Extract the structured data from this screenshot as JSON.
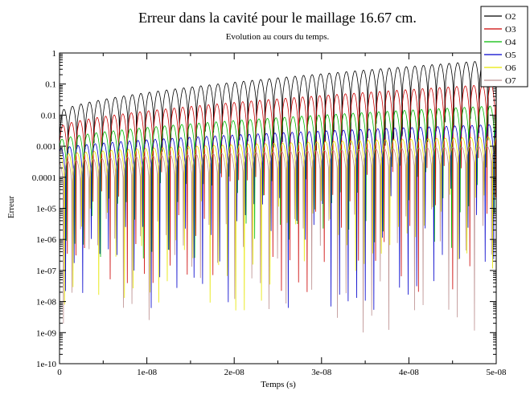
{
  "chart_data": {
    "type": "line",
    "title": "Erreur dans la cavité pour le maillage 16.67 cm.",
    "subtitle": "Evolution au cours du temps.",
    "xlabel": "Temps (s)",
    "ylabel": "Erreur",
    "xlim": [
      0,
      5e-08
    ],
    "ylim": [
      1e-10,
      1
    ],
    "yscale": "log",
    "x_ticks": [
      {
        "value": 0,
        "label": "0"
      },
      {
        "value": 1e-08,
        "label": "1e-08"
      },
      {
        "value": 2e-08,
        "label": "2e-08"
      },
      {
        "value": 3e-08,
        "label": "3e-08"
      },
      {
        "value": 4e-08,
        "label": "4e-08"
      },
      {
        "value": 5e-08,
        "label": "5e-08"
      }
    ],
    "y_ticks": [
      {
        "value": 1,
        "label": "1"
      },
      {
        "value": 0.1,
        "label": "0.1"
      },
      {
        "value": 0.01,
        "label": "0.01"
      },
      {
        "value": 0.001,
        "label": "0.001"
      },
      {
        "value": 0.0001,
        "label": "0.0001"
      },
      {
        "value": 1e-05,
        "label": "1e-05"
      },
      {
        "value": 1e-06,
        "label": "1e-06"
      },
      {
        "value": 1e-07,
        "label": "1e-07"
      },
      {
        "value": 1e-08,
        "label": "1e-08"
      },
      {
        "value": 1e-09,
        "label": "1e-09"
      },
      {
        "value": 1e-10,
        "label": "1e-10"
      }
    ],
    "grid": false,
    "legend_position": "top-right-outside",
    "oscillation_cycles": 51,
    "series": [
      {
        "name": "O2",
        "color": "#000000",
        "peak_start": 0.012,
        "peak_end": 0.6,
        "trough_start": 0.0015,
        "trough_end": 0.07,
        "spike_min": 0.0006
      },
      {
        "name": "O3",
        "color": "#cc0000",
        "peak_start": 0.004,
        "peak_end": 0.1,
        "trough_start": 0.0004,
        "trough_end": 0.008,
        "spike_min": 2e-08
      },
      {
        "name": "O4",
        "color": "#00bb00",
        "peak_start": 0.0015,
        "peak_end": 0.02,
        "trough_start": 0.0002,
        "trough_end": 0.002,
        "spike_min": 2e-07
      },
      {
        "name": "O5",
        "color": "#0000cc",
        "peak_start": 0.0008,
        "peak_end": 0.005,
        "trough_start": 8e-05,
        "trough_end": 0.0005,
        "spike_min": 5e-09
      },
      {
        "name": "O6",
        "color": "#e6e600",
        "peak_start": 0.0005,
        "peak_end": 0.002,
        "trough_start": 6e-05,
        "trough_end": 0.0003,
        "spike_min": 5e-09
      },
      {
        "name": "O7",
        "color": "#bc8f8f",
        "peak_start": 0.0003,
        "peak_end": 0.001,
        "trough_start": 4e-05,
        "trough_end": 0.0002,
        "spike_min": 1e-09
      }
    ]
  }
}
